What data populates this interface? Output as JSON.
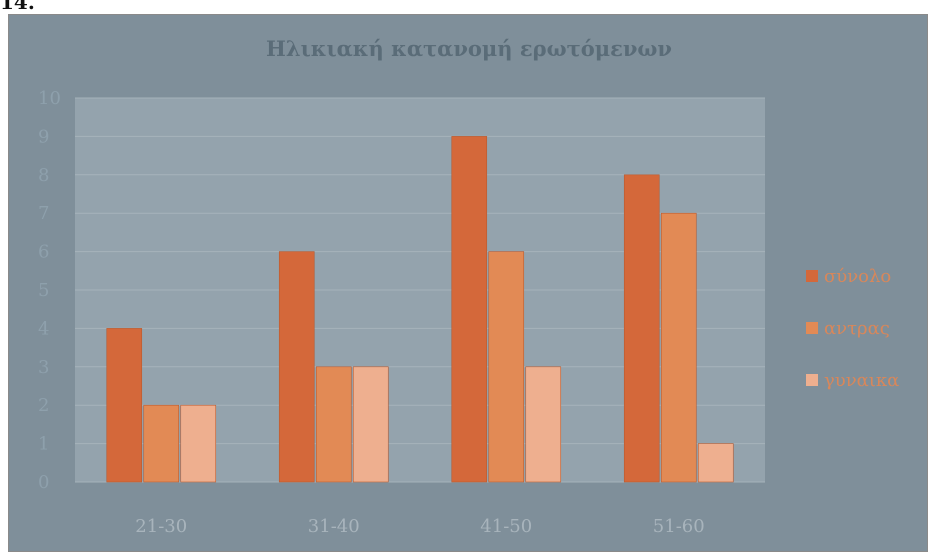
{
  "page_label": "14.",
  "chart_data": {
    "type": "bar",
    "title": "Ηλικιακή κατανομή ερωτόμενων",
    "categories": [
      "21-30",
      "31-40",
      "41-50",
      "51-60"
    ],
    "series": [
      {
        "name": "σύνολο",
        "values": [
          4,
          6,
          9,
          8
        ],
        "color": "#d4683a"
      },
      {
        "name": "αντρας",
        "values": [
          2,
          3,
          6,
          7
        ],
        "color": "#e28a55"
      },
      {
        "name": "γυναικα",
        "values": [
          2,
          3,
          3,
          1
        ],
        "color": "#eeaf8f"
      }
    ],
    "ylim": [
      0,
      10
    ],
    "yticks": [
      "0",
      "1",
      "2",
      "3",
      "4",
      "5",
      "6",
      "7",
      "8",
      "9",
      "10"
    ],
    "grid": true,
    "legend": "right"
  }
}
